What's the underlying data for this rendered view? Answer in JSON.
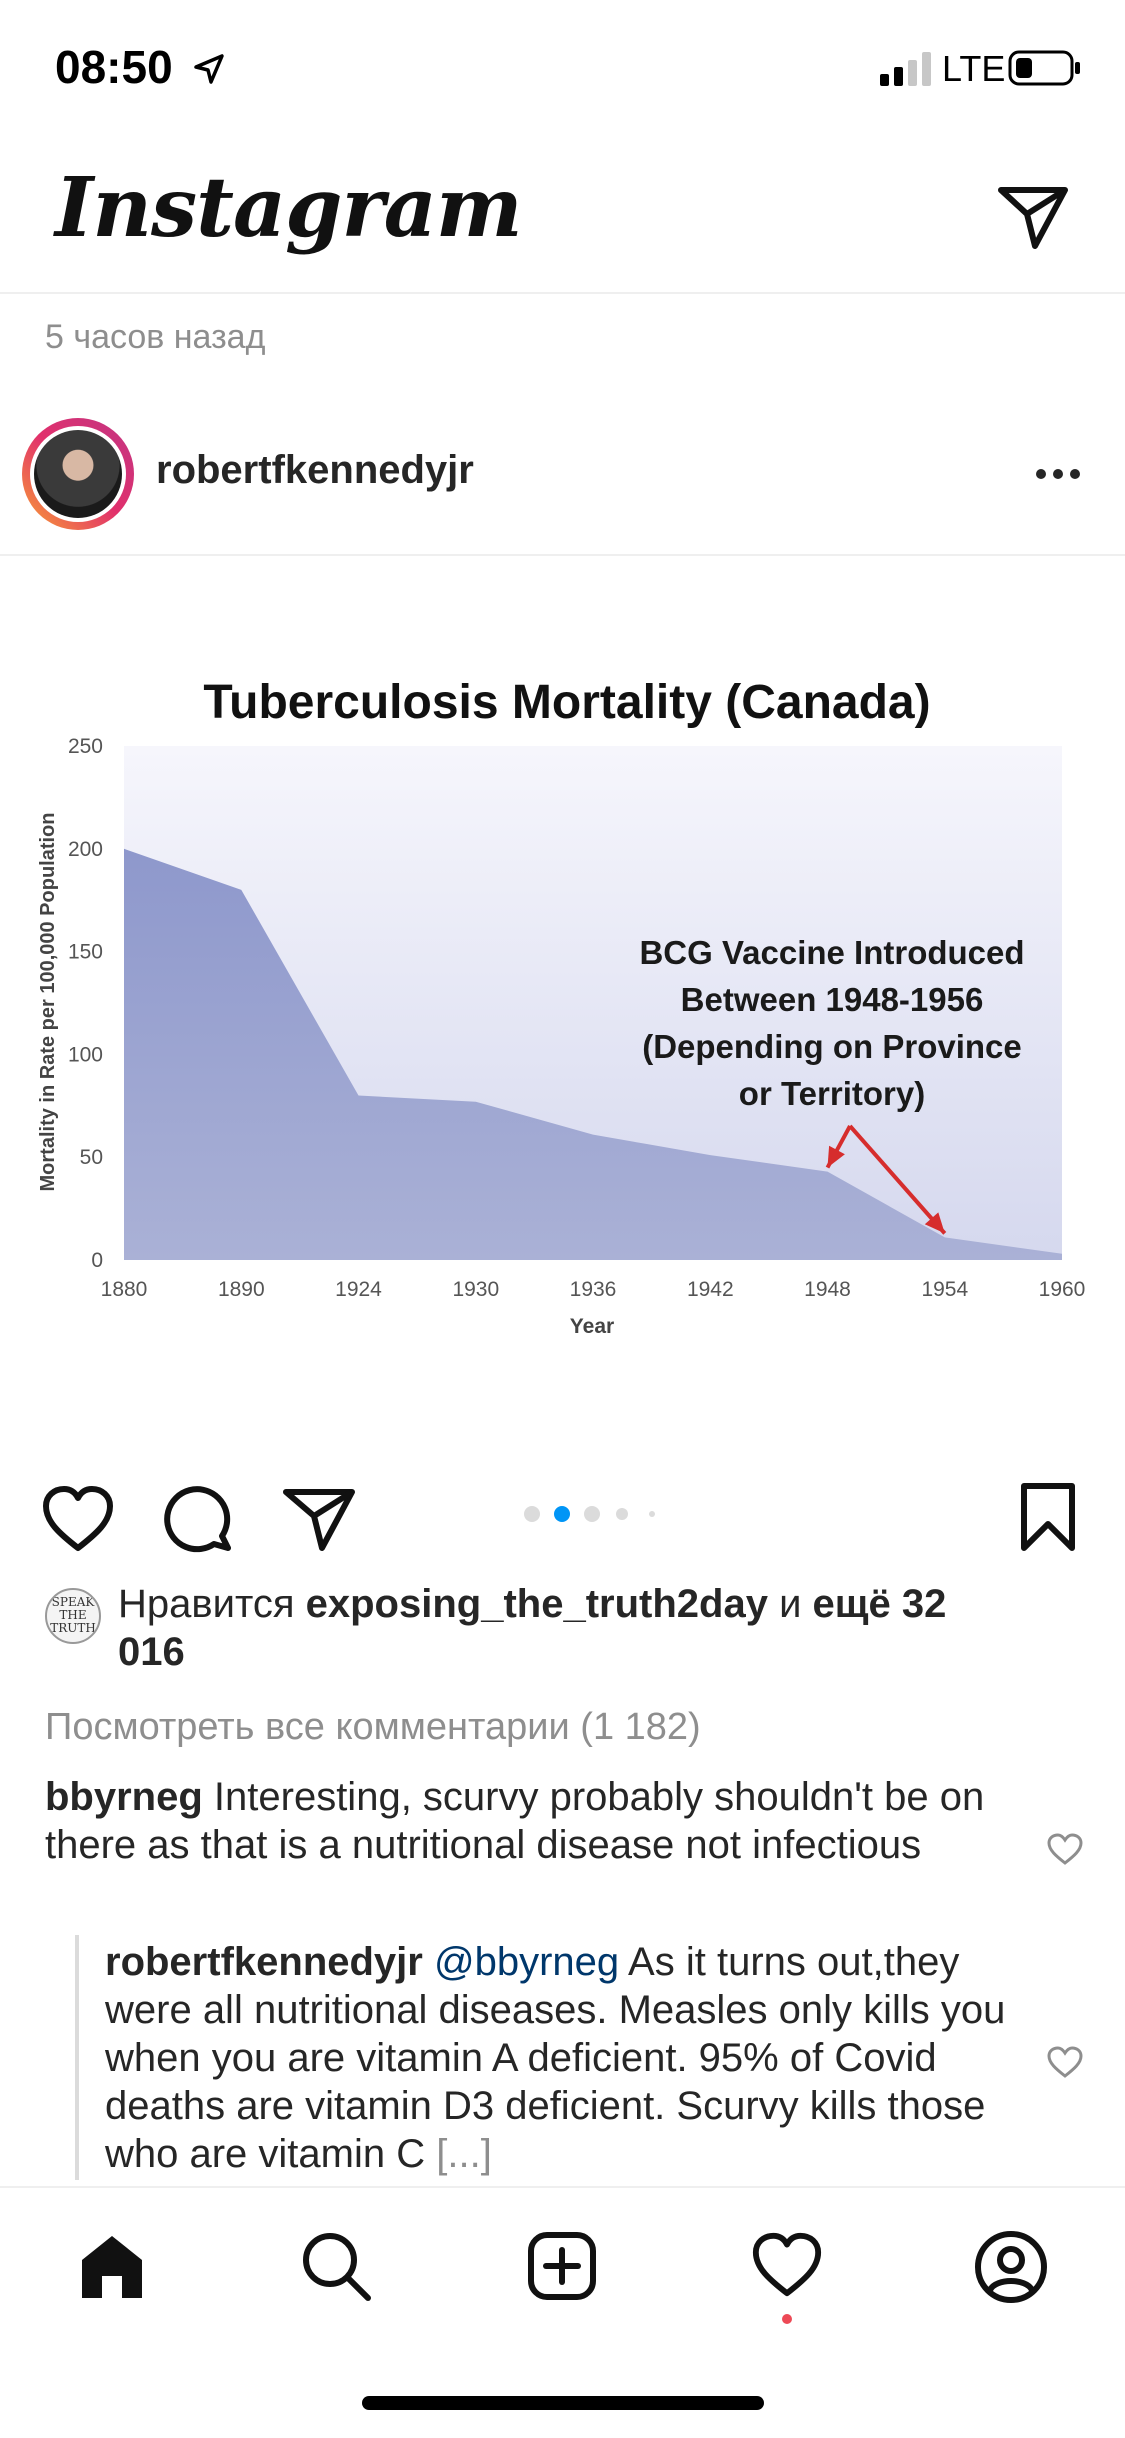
{
  "status_bar": {
    "time": "08:50",
    "network": "LTE"
  },
  "header": {
    "app_title": "Instagram"
  },
  "post": {
    "time_ago": "5 часов назад",
    "username": "robertfkennedyjr",
    "likes_prefix": "Нравится ",
    "liked_by": "exposing_the_truth2day",
    "likes_connector": " и ",
    "likes_more": "ещё 32 016",
    "liker_avatar_text": "SPEAK THE TRUTH",
    "view_comments": "Посмотреть все комментарии (1 182)",
    "carousel": {
      "count": 5,
      "active_index": 1
    }
  },
  "comments": [
    {
      "user": "bbyrneg",
      "text": " Interesting, scurvy probably shouldn't be on there as that is a nutritional disease not infectious"
    },
    {
      "user": "robertfkennedyjr",
      "mention": "@bbyrneg",
      "text": " As it turns out,they were all nutritional diseases. Measles only kills you when you are vitamin A deficient. 95% of Covid deaths are vitamin D3 deficient. Scurvy kills those who are vitamin C ",
      "more": "[...]"
    }
  ],
  "chart_data": {
    "type": "area",
    "title": "Tuberculosis Mortality (Canada)",
    "xlabel": "Year",
    "ylabel": "Mortality in Rate per 100,000 Population",
    "categories": [
      "1880",
      "1890",
      "1924",
      "1930",
      "1936",
      "1942",
      "1948",
      "1954",
      "1960"
    ],
    "values": [
      200,
      180,
      80,
      77,
      61,
      51,
      43,
      11,
      3
    ],
    "ylim": [
      0,
      250
    ],
    "yticks": [
      "0",
      "50",
      "100",
      "150",
      "200",
      "250"
    ],
    "annotation": {
      "lines": [
        "BCG Vaccine Introduced",
        "Between 1948-1956",
        "(Depending on Province",
        "or Territory)"
      ],
      "arrow_targets": [
        "1948",
        "1954"
      ]
    },
    "colors": {
      "fill": "#8e98cc",
      "arrow": "#d62d2d"
    }
  },
  "tab_bar": {
    "items": [
      "home",
      "search",
      "create",
      "activity",
      "profile"
    ]
  }
}
